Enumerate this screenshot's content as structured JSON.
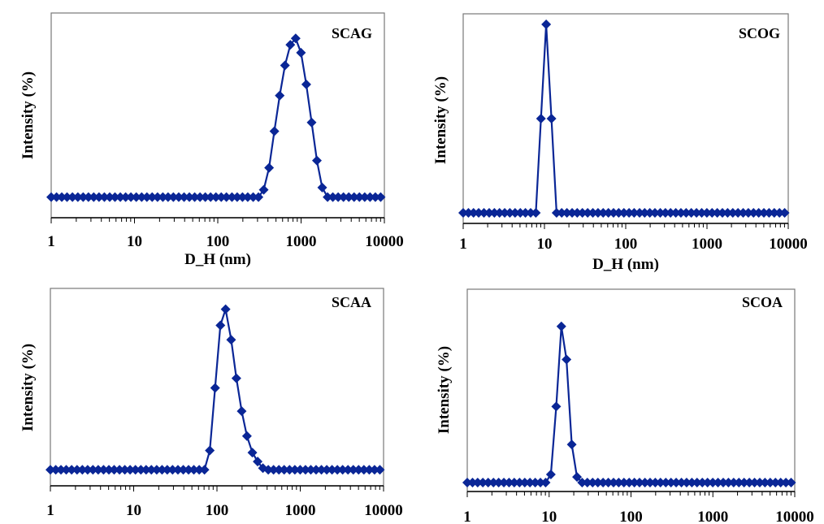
{
  "chart_data": [
    {
      "type": "line",
      "panel_label": "SCAG",
      "xlabel": "D_H (nm)",
      "ylabel": "Intensity (%)",
      "xscale": "log",
      "xlim": [
        1,
        10000
      ],
      "xticks": [
        "1",
        "10",
        "100",
        "1000",
        "10000"
      ],
      "ylim": [
        -13,
        116
      ],
      "yticks_shown": false,
      "marker": "diamond",
      "color": "#0a2696",
      "points": [
        [
          356,
          4.6
        ],
        [
          413,
          18.5
        ],
        [
          478,
          41.5
        ],
        [
          554,
          64
        ],
        [
          641,
          83
        ],
        [
          743,
          96
        ],
        [
          861,
          100
        ],
        [
          997,
          91
        ],
        [
          1155,
          71
        ],
        [
          1338,
          47
        ],
        [
          1549,
          23
        ],
        [
          1795,
          6
        ]
      ]
    },
    {
      "type": "line",
      "panel_label": "SCOG",
      "xlabel": "D_H (nm)",
      "ylabel": "Intensity (%)",
      "xscale": "log",
      "xlim": [
        1,
        10000
      ],
      "xticks": [
        "1",
        "10",
        "100",
        "1000",
        "10000"
      ],
      "ylim": [
        -5.6,
        105.6
      ],
      "yticks_shown": false,
      "marker": "diamond",
      "color": "#0a2696",
      "points": [
        [
          9.06,
          50
        ],
        [
          10.5,
          100
        ],
        [
          12.2,
          50
        ]
      ]
    },
    {
      "type": "line",
      "panel_label": "SCAA",
      "xlabel": "",
      "ylabel": "Intensity (%)",
      "xscale": "log",
      "xlim": [
        1,
        10000
      ],
      "xticks": [
        "1",
        "10",
        "100",
        "1000",
        "10000"
      ],
      "ylim": [
        -10,
        113
      ],
      "yticks_shown": false,
      "marker": "diamond",
      "color": "#0a2696",
      "points": [
        [
          82,
          12
        ],
        [
          95,
          51
        ],
        [
          110,
          90
        ],
        [
          127,
          100
        ],
        [
          148,
          81
        ],
        [
          171,
          57
        ],
        [
          198,
          36.5
        ],
        [
          229,
          21
        ],
        [
          266,
          10.7
        ],
        [
          308,
          5.1
        ],
        [
          356,
          1
        ]
      ]
    },
    {
      "type": "line",
      "panel_label": "SCOA",
      "xlabel": "",
      "ylabel": "Intensity (%)",
      "xscale": "log",
      "xlim": [
        1,
        10000
      ],
      "xticks": [
        "1",
        "10",
        "100",
        "1000",
        "10000"
      ],
      "ylim": [
        -5.7,
        123.8
      ],
      "yticks_shown": false,
      "marker": "diamond",
      "color": "#0a2696",
      "points": [
        [
          10.5,
          5.2
        ],
        [
          12.2,
          48.7
        ],
        [
          14.1,
          100
        ],
        [
          16.3,
          78.8
        ],
        [
          18.9,
          24.4
        ],
        [
          21.9,
          3.6
        ]
      ]
    }
  ],
  "x_grid": [
    1,
    1.16,
    1.34,
    1.55,
    1.8,
    2.09,
    2.42,
    2.8,
    3.24,
    3.75,
    4.35,
    5.04,
    5.83,
    6.76,
    7.83,
    9.06,
    10.5,
    12.2,
    14.1,
    16.3,
    18.9,
    21.9,
    25.3,
    29.3,
    34.0,
    39.4,
    45.6,
    52.8,
    61.2,
    70.8,
    82.0,
    95.0,
    110,
    127,
    148,
    171,
    198,
    229,
    266,
    308,
    356,
    413,
    478,
    554,
    641,
    743,
    861,
    997,
    1155,
    1338,
    1549,
    1795,
    2079,
    2407,
    2788,
    3228,
    3739,
    4331,
    5016,
    5810,
    6730,
    7795,
    9028
  ]
}
